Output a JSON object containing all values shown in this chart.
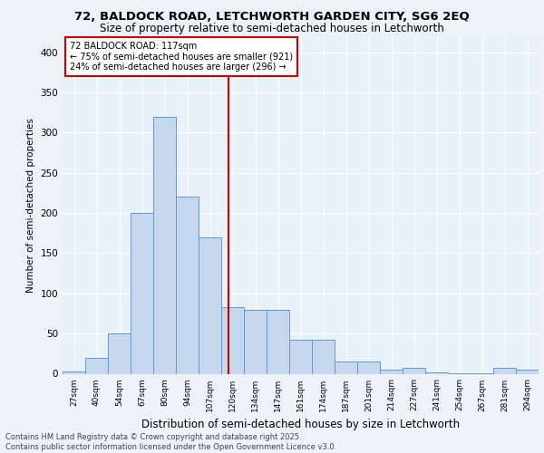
{
  "title1": "72, BALDOCK ROAD, LETCHWORTH GARDEN CITY, SG6 2EQ",
  "title2": "Size of property relative to semi-detached houses in Letchworth",
  "xlabel": "Distribution of semi-detached houses by size in Letchworth",
  "ylabel": "Number of semi-detached properties",
  "categories": [
    "27sqm",
    "40sqm",
    "54sqm",
    "67sqm",
    "80sqm",
    "94sqm",
    "107sqm",
    "120sqm",
    "134sqm",
    "147sqm",
    "161sqm",
    "174sqm",
    "187sqm",
    "201sqm",
    "214sqm",
    "227sqm",
    "241sqm",
    "254sqm",
    "267sqm",
    "281sqm",
    "294sqm"
  ],
  "values": [
    3,
    20,
    50,
    200,
    320,
    220,
    170,
    83,
    80,
    80,
    42,
    42,
    15,
    15,
    5,
    7,
    2,
    1,
    1,
    7,
    5
  ],
  "bar_color": "#c5d8ed",
  "bar_edge_color": "#5b9bd5",
  "annotation_line_color": "#cc0000",
  "box_text_line1": "72 BALDOCK ROAD: 117sqm",
  "box_text_line2": "← 75% of semi-detached houses are smaller (921)",
  "box_text_line3": "24% of semi-detached houses are larger (296) →",
  "box_color": "#ffffff",
  "box_edge_color": "#cc0000",
  "footer1": "Contains HM Land Registry data © Crown copyright and database right 2025.",
  "footer2": "Contains public sector information licensed under the Open Government Licence v3.0.",
  "ylim": [
    0,
    420
  ],
  "yticks": [
    0,
    50,
    100,
    150,
    200,
    250,
    300,
    350,
    400
  ],
  "background_color": "#e8f0f8",
  "fig_background": "#eef2f8"
}
